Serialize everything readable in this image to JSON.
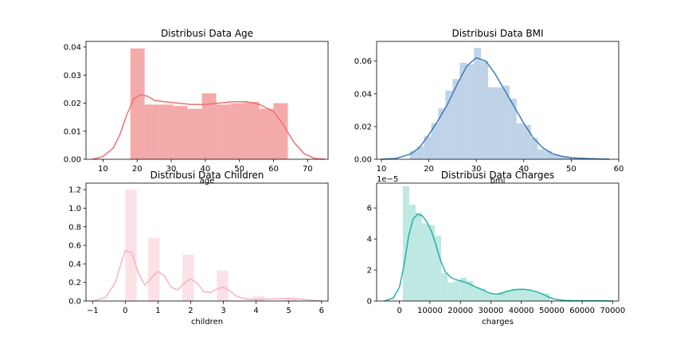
{
  "chart_data": [
    {
      "type": "bar",
      "title": "Distribusi Data Age",
      "xlabel": "age",
      "ylabel": "",
      "xlim": [
        5,
        76
      ],
      "ylim": [
        0,
        0.042
      ],
      "xticks": [
        10,
        20,
        30,
        40,
        50,
        60,
        70
      ],
      "xtick_labels": [
        "10",
        "20",
        "30",
        "40",
        "50",
        "60",
        "70"
      ],
      "yticks": [
        0,
        0.01,
        0.02,
        0.03,
        0.04
      ],
      "ytick_labels": [
        "0.00",
        "0.01",
        "0.02",
        "0.03",
        "0.04"
      ],
      "bar_color": "#f28e8e",
      "line_color": "#ec7272",
      "bins": [
        {
          "x0": 18,
          "x1": 22.2,
          "y": 0.0395
        },
        {
          "x0": 22.2,
          "x1": 26.4,
          "y": 0.0195
        },
        {
          "x0": 26.4,
          "x1": 30.6,
          "y": 0.0195
        },
        {
          "x0": 30.6,
          "x1": 34.8,
          "y": 0.019
        },
        {
          "x0": 34.8,
          "x1": 39.0,
          "y": 0.018
        },
        {
          "x0": 39.0,
          "x1": 43.2,
          "y": 0.0235
        },
        {
          "x0": 43.2,
          "x1": 47.4,
          "y": 0.0195
        },
        {
          "x0": 47.4,
          "x1": 51.6,
          "y": 0.02
        },
        {
          "x0": 51.6,
          "x1": 55.8,
          "y": 0.0205
        },
        {
          "x0": 55.8,
          "x1": 60.0,
          "y": 0.018
        },
        {
          "x0": 60.0,
          "x1": 64.2,
          "y": 0.02
        }
      ],
      "kde": {
        "x": [
          7,
          10,
          13,
          15,
          17,
          19,
          21,
          23,
          25,
          28,
          32,
          36,
          40,
          44,
          48,
          52,
          56,
          60,
          63,
          66,
          69,
          72,
          75
        ],
        "y": [
          0.0,
          0.001,
          0.004,
          0.009,
          0.016,
          0.0215,
          0.023,
          0.0225,
          0.021,
          0.0205,
          0.02,
          0.0195,
          0.0195,
          0.02,
          0.0205,
          0.0205,
          0.0195,
          0.017,
          0.012,
          0.006,
          0.002,
          0.0003,
          0.0
        ]
      }
    },
    {
      "type": "bar",
      "title": "Distribusi Data BMI",
      "xlabel": "bmi",
      "ylabel": "",
      "xlim": [
        9,
        60
      ],
      "ylim": [
        0,
        0.072
      ],
      "xticks": [
        10,
        20,
        30,
        40,
        50,
        60
      ],
      "xtick_labels": [
        "10",
        "20",
        "30",
        "40",
        "50",
        "60"
      ],
      "yticks": [
        0,
        0.02,
        0.04,
        0.06
      ],
      "ytick_labels": [
        "0.00",
        "0.02",
        "0.04",
        "0.06"
      ],
      "bar_color": "#a9c4e0",
      "line_color": "#3d7ab5",
      "bins": [
        {
          "x0": 16,
          "x1": 17.5,
          "y": 0.005
        },
        {
          "x0": 17.5,
          "x1": 19,
          "y": 0.008
        },
        {
          "x0": 19,
          "x1": 20.5,
          "y": 0.014
        },
        {
          "x0": 20.5,
          "x1": 22,
          "y": 0.022
        },
        {
          "x0": 22,
          "x1": 23.5,
          "y": 0.031
        },
        {
          "x0": 23.5,
          "x1": 25,
          "y": 0.042
        },
        {
          "x0": 25,
          "x1": 26.5,
          "y": 0.049
        },
        {
          "x0": 26.5,
          "x1": 28,
          "y": 0.059
        },
        {
          "x0": 28,
          "x1": 29.5,
          "y": 0.058
        },
        {
          "x0": 29.5,
          "x1": 31,
          "y": 0.068
        },
        {
          "x0": 31,
          "x1": 32.5,
          "y": 0.06
        },
        {
          "x0": 32.5,
          "x1": 34,
          "y": 0.044
        },
        {
          "x0": 34,
          "x1": 35.5,
          "y": 0.044
        },
        {
          "x0": 35.5,
          "x1": 37,
          "y": 0.045
        },
        {
          "x0": 37,
          "x1": 38.5,
          "y": 0.037
        },
        {
          "x0": 38.5,
          "x1": 40,
          "y": 0.022
        },
        {
          "x0": 40,
          "x1": 41.5,
          "y": 0.021
        },
        {
          "x0": 41.5,
          "x1": 43,
          "y": 0.013
        },
        {
          "x0": 43,
          "x1": 44.5,
          "y": 0.006
        },
        {
          "x0": 44.5,
          "x1": 46,
          "y": 0.005
        },
        {
          "x0": 46,
          "x1": 47.5,
          "y": 0.003
        },
        {
          "x0": 47.5,
          "x1": 49,
          "y": 0.002
        },
        {
          "x0": 49,
          "x1": 50.5,
          "y": 0.001
        },
        {
          "x0": 50.5,
          "x1": 52,
          "y": 0.0008
        },
        {
          "x0": 52,
          "x1": 53.5,
          "y": 0.0005
        }
      ],
      "kde": {
        "x": [
          10,
          13,
          16,
          18,
          20,
          22,
          24,
          26,
          28,
          30,
          32,
          34,
          36,
          38,
          40,
          42,
          44,
          46,
          48,
          50,
          53,
          56,
          58
        ],
        "y": [
          0.0,
          0.0005,
          0.003,
          0.007,
          0.015,
          0.024,
          0.034,
          0.046,
          0.057,
          0.062,
          0.06,
          0.052,
          0.042,
          0.032,
          0.022,
          0.013,
          0.007,
          0.0035,
          0.0018,
          0.0009,
          0.0005,
          0.0002,
          0.0
        ]
      }
    },
    {
      "type": "bar",
      "title": "Distribusi Data Children",
      "xlabel": "children",
      "ylabel": "",
      "xlim": [
        -1.2,
        6.2
      ],
      "ylim": [
        0,
        1.27
      ],
      "xticks": [
        -1,
        0,
        1,
        2,
        3,
        4,
        5,
        6
      ],
      "xtick_labels": [
        "−1",
        "0",
        "1",
        "2",
        "3",
        "4",
        "5",
        "6"
      ],
      "yticks": [
        0,
        0.2,
        0.4,
        0.6,
        0.8,
        1.0,
        1.2
      ],
      "ytick_labels": [
        "0.0",
        "0.2",
        "0.4",
        "0.6",
        "0.8",
        "1.0",
        "1.2"
      ],
      "bar_color": "#fbd7dd",
      "line_color": "#f5b4c1",
      "bins": [
        {
          "x0": 0,
          "x1": 0.35,
          "y": 1.2
        },
        {
          "x0": 0.7,
          "x1": 1.05,
          "y": 0.68
        },
        {
          "x0": 1.75,
          "x1": 2.1,
          "y": 0.5
        },
        {
          "x0": 2.8,
          "x1": 3.15,
          "y": 0.33
        },
        {
          "x0": 3.9,
          "x1": 4.25,
          "y": 0.05
        },
        {
          "x0": 4.9,
          "x1": 5.25,
          "y": 0.03
        }
      ],
      "kde": {
        "x": [
          -1,
          -0.6,
          -0.3,
          -0.1,
          0.0,
          0.2,
          0.4,
          0.6,
          0.8,
          1.0,
          1.2,
          1.4,
          1.6,
          1.8,
          2.0,
          2.2,
          2.4,
          2.6,
          2.8,
          3.0,
          3.2,
          3.4,
          3.7,
          4.0,
          4.3,
          4.6,
          5.0,
          5.4,
          5.8,
          6.0
        ],
        "y": [
          0.0,
          0.04,
          0.2,
          0.44,
          0.54,
          0.52,
          0.3,
          0.17,
          0.25,
          0.32,
          0.27,
          0.15,
          0.12,
          0.19,
          0.24,
          0.19,
          0.1,
          0.09,
          0.13,
          0.15,
          0.11,
          0.05,
          0.02,
          0.015,
          0.02,
          0.025,
          0.03,
          0.02,
          0.005,
          0.0
        ]
      }
    },
    {
      "type": "bar",
      "title": "Distribusi Data Charges",
      "xlabel": "charges",
      "ylabel": "",
      "offset_label": "1e−5",
      "xlim": [
        -7500,
        72000
      ],
      "ylim": [
        0,
        7.6
      ],
      "xticks": [
        0,
        10000,
        20000,
        30000,
        40000,
        50000,
        60000,
        70000
      ],
      "xtick_labels": [
        "0",
        "10000",
        "20000",
        "30000",
        "40000",
        "50000",
        "60000",
        "70000"
      ],
      "yticks": [
        0,
        2,
        4,
        6
      ],
      "ytick_labels": [
        "0",
        "2",
        "4",
        "6"
      ],
      "bar_color": "#a8e0d8",
      "line_color": "#26b2a5",
      "bins": [
        {
          "x0": 1100,
          "x1": 3200,
          "y": 7.4
        },
        {
          "x0": 3200,
          "x1": 5300,
          "y": 6.2
        },
        {
          "x0": 5300,
          "x1": 7400,
          "y": 5.7
        },
        {
          "x0": 7400,
          "x1": 9500,
          "y": 5.0
        },
        {
          "x0": 9500,
          "x1": 11600,
          "y": 4.9
        },
        {
          "x0": 11600,
          "x1": 13700,
          "y": 4.2
        },
        {
          "x0": 13700,
          "x1": 15800,
          "y": 1.8
        },
        {
          "x0": 15800,
          "x1": 17900,
          "y": 1.2
        },
        {
          "x0": 17900,
          "x1": 20000,
          "y": 1.3
        },
        {
          "x0": 20000,
          "x1": 22100,
          "y": 1.5
        },
        {
          "x0": 22100,
          "x1": 24200,
          "y": 1.3
        },
        {
          "x0": 24200,
          "x1": 26300,
          "y": 0.9
        },
        {
          "x0": 26300,
          "x1": 28400,
          "y": 0.8
        },
        {
          "x0": 28400,
          "x1": 30500,
          "y": 0.5
        },
        {
          "x0": 30500,
          "x1": 32600,
          "y": 0.4
        },
        {
          "x0": 32600,
          "x1": 34700,
          "y": 0.6
        },
        {
          "x0": 34700,
          "x1": 36800,
          "y": 0.7
        },
        {
          "x0": 36800,
          "x1": 38900,
          "y": 0.8
        },
        {
          "x0": 38900,
          "x1": 41000,
          "y": 0.8
        },
        {
          "x0": 41000,
          "x1": 43100,
          "y": 0.7
        },
        {
          "x0": 43100,
          "x1": 45200,
          "y": 0.6
        },
        {
          "x0": 45200,
          "x1": 47300,
          "y": 0.5
        },
        {
          "x0": 47300,
          "x1": 49400,
          "y": 0.5
        }
      ],
      "kde": {
        "x": [
          -5000,
          -2000,
          0,
          1500,
          3000,
          4500,
          6000,
          7500,
          9000,
          10500,
          12000,
          13500,
          15000,
          17000,
          19000,
          21000,
          23000,
          25000,
          27000,
          29000,
          31000,
          33000,
          35000,
          37000,
          39000,
          41000,
          43000,
          45000,
          47000,
          49000,
          51000,
          54000,
          58000,
          62000,
          66000,
          70000
        ],
        "y": [
          0.0,
          0.2,
          0.9,
          2.3,
          4.2,
          5.3,
          5.6,
          5.5,
          5.1,
          4.5,
          3.6,
          2.6,
          1.9,
          1.5,
          1.35,
          1.25,
          1.1,
          0.9,
          0.75,
          0.55,
          0.45,
          0.45,
          0.6,
          0.7,
          0.75,
          0.75,
          0.7,
          0.6,
          0.45,
          0.25,
          0.12,
          0.04,
          0.02,
          0.02,
          0.01,
          0.0
        ]
      }
    }
  ]
}
